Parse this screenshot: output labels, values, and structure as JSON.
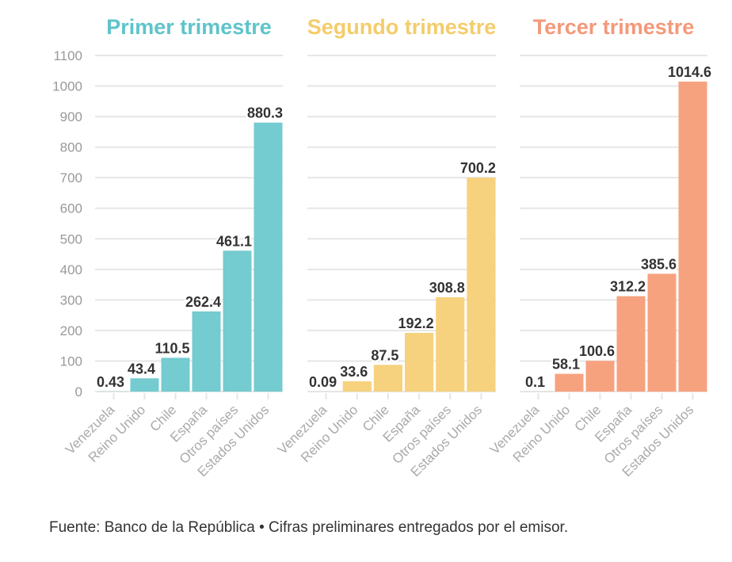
{
  "chart_data": [
    {
      "type": "bar",
      "title": "Primer trimestre",
      "color": "#74CBD0",
      "title_color": "#5EC4CA",
      "categories": [
        "Venezuela",
        "Reino Unido",
        "Chile",
        "España",
        "Otros países",
        "Estados Unidos"
      ],
      "values": [
        0.43,
        43.4,
        110.5,
        262.4,
        461.1,
        880.3
      ],
      "labels": [
        "0.43",
        "43.4",
        "110.5",
        "262.4",
        "461.1",
        "880.3"
      ]
    },
    {
      "type": "bar",
      "title": "Segundo trimestre",
      "color": "#F6D27E",
      "title_color": "#F4CC6A",
      "categories": [
        "Venezuela",
        "Reino Unido",
        "Chile",
        "España",
        "Otros países",
        "Estados Unidos"
      ],
      "values": [
        0.09,
        33.6,
        87.5,
        192.2,
        308.8,
        700.2
      ],
      "labels": [
        "0.09",
        "33.6",
        "87.5",
        "192.2",
        "308.8",
        "700.2"
      ]
    },
    {
      "type": "bar",
      "title": "Tercer trimestre",
      "color": "#F7A27F",
      "title_color": "#F4997A",
      "categories": [
        "Venezuela",
        "Reino Unido",
        "Chile",
        "España",
        "Otros países",
        "Estados Unidos"
      ],
      "values": [
        0.1,
        58.1,
        100.6,
        312.2,
        385.6,
        1014.6
      ],
      "labels": [
        "0.1",
        "58.1",
        "100.6",
        "312.2",
        "385.6",
        "1014.6"
      ]
    }
  ],
  "y_axis": {
    "ylim": [
      0,
      1100
    ],
    "ticks": [
      "0",
      "100",
      "200",
      "300",
      "400",
      "500",
      "600",
      "700",
      "800",
      "900",
      "1000",
      "1100"
    ],
    "grid": true
  },
  "source": "Fuente: Banco de la República • Cifras preliminares entregados por el emisor."
}
